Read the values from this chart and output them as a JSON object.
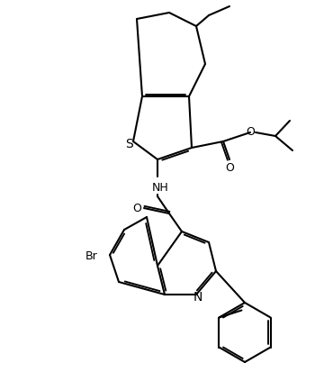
{
  "background_color": "#ffffff",
  "line_color": "#000000",
  "line_width": 1.5,
  "figsize": [
    3.6,
    4.14
  ],
  "dpi": 100,
  "atoms": {
    "S_label": "S",
    "N_label": "N",
    "Br_label": "Br",
    "NH_label": "NH",
    "O1_label": "O",
    "O2_label": "O",
    "O3_label": "O"
  }
}
